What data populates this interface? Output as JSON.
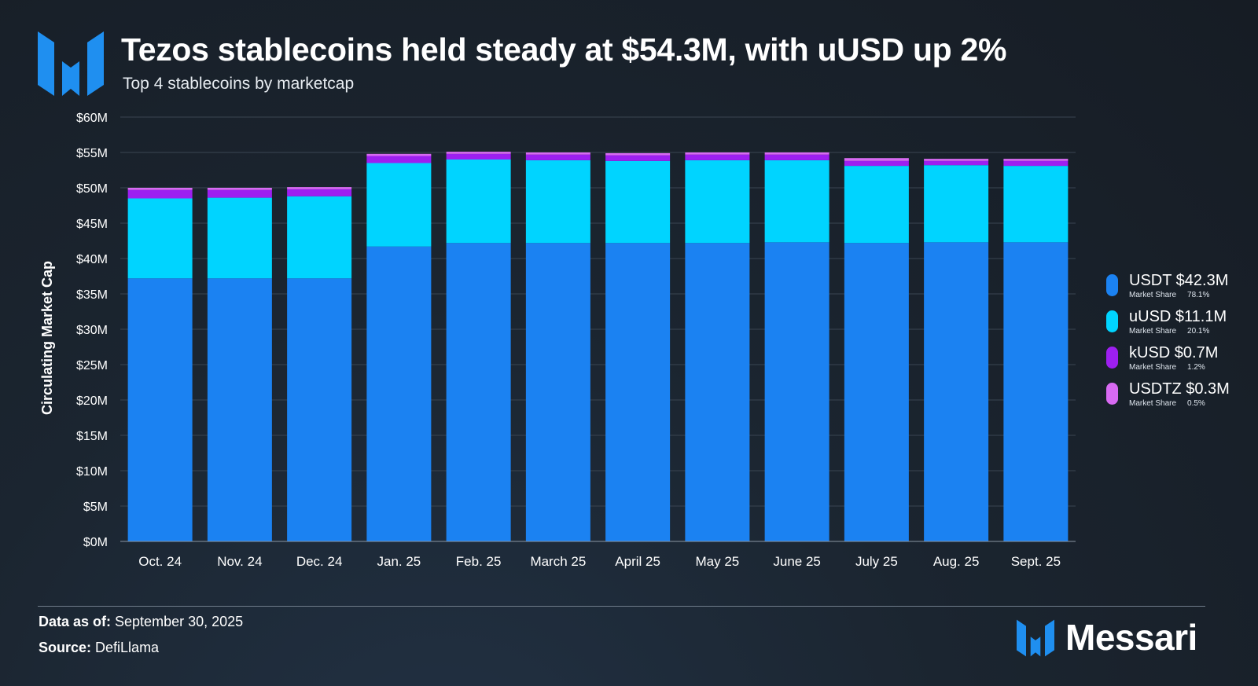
{
  "header": {
    "title": "Tezos stablecoins held steady at $54.3M, with uUSD up 2%",
    "subtitle": "Top 4 stablecoins by marketcap"
  },
  "colors": {
    "usdt": "#1b82f2",
    "uusd": "#00d4ff",
    "kusd": "#9d1ff0",
    "usdtz": "#d86af2",
    "grid": "#3a4552",
    "brand_blue": "#1f8ff0"
  },
  "legend": {
    "market_share_label": "Market Share",
    "items": [
      {
        "label": "USDT $42.3M",
        "share": "78.1%",
        "color_key": "usdt"
      },
      {
        "label": "uUSD $11.1M",
        "share": "20.1%",
        "color_key": "uusd"
      },
      {
        "label": "kUSD $0.7M",
        "share": "1.2%",
        "color_key": "kusd"
      },
      {
        "label": "USDTZ $0.3M",
        "share": "0.5%",
        "color_key": "usdtz"
      }
    ]
  },
  "chart_data": {
    "type": "bar",
    "stacked": true,
    "title": "Tezos stablecoins held steady at $54.3M, with uUSD up 2%",
    "subtitle": "Top 4 stablecoins by marketcap",
    "xlabel": "",
    "ylabel": "Circulating Market Cap",
    "ylim": [
      0,
      60
    ],
    "yticks": [
      0,
      5,
      10,
      15,
      20,
      25,
      30,
      35,
      40,
      45,
      50,
      55,
      60
    ],
    "ytick_labels": [
      "$0M",
      "$5M",
      "$10M",
      "$15M",
      "$20M",
      "$25M",
      "$30M",
      "$35M",
      "$40M",
      "$45M",
      "$50M",
      "$55M",
      "$60M"
    ],
    "categories": [
      "Oct. 24",
      "Nov. 24",
      "Dec. 24",
      "Jan. 25",
      "Feb. 25",
      "March 25",
      "April 25",
      "May 25",
      "June 25",
      "July 25",
      "Aug. 25",
      "Sept. 25"
    ],
    "series": [
      {
        "name": "USDT",
        "color_key": "usdt",
        "values": [
          37.2,
          37.2,
          37.2,
          41.7,
          42.2,
          42.2,
          42.2,
          42.2,
          42.3,
          42.2,
          42.3,
          42.3
        ]
      },
      {
        "name": "uUSD",
        "color_key": "uusd",
        "values": [
          11.3,
          11.4,
          11.6,
          11.8,
          11.8,
          11.7,
          11.6,
          11.7,
          11.6,
          10.9,
          10.9,
          10.8
        ]
      },
      {
        "name": "kUSD",
        "color_key": "kusd",
        "values": [
          1.2,
          1.1,
          1.0,
          1.0,
          0.8,
          0.8,
          0.8,
          0.8,
          0.8,
          0.7,
          0.6,
          0.7
        ]
      },
      {
        "name": "USDTZ",
        "color_key": "usdtz",
        "values": [
          0.3,
          0.3,
          0.3,
          0.3,
          0.3,
          0.3,
          0.3,
          0.3,
          0.3,
          0.4,
          0.3,
          0.3
        ]
      }
    ],
    "grid": true,
    "legend": "right"
  },
  "footer": {
    "data_as_of_label": "Data as of:",
    "data_as_of_value": " September 30, 2025",
    "source_label": "Source:",
    "source_value": " DefiLlama",
    "brand": "Messari"
  }
}
